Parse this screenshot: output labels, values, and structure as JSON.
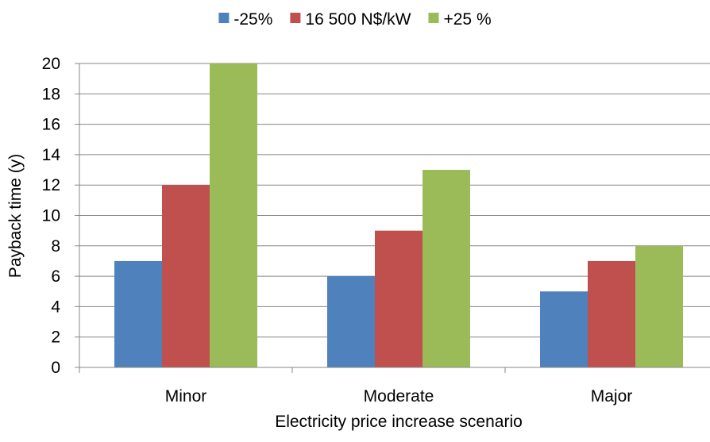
{
  "chart_data": {
    "type": "bar",
    "title": "",
    "xlabel": "Electricity price increase scenario",
    "ylabel": "Payback time (y)",
    "categories": [
      "Minor",
      "Moderate",
      "Major"
    ],
    "series": [
      {
        "name": "-25%",
        "color": "#4f81bd",
        "values": [
          7,
          6,
          5
        ]
      },
      {
        "name": "16 500 N$/kW",
        "color": "#c0504d",
        "values": [
          12,
          9,
          7
        ]
      },
      {
        "name": "+25 %",
        "color": "#9bbb59",
        "values": [
          20,
          13,
          8
        ]
      }
    ],
    "ylim": [
      0,
      20
    ],
    "yticks": [
      "0",
      "2",
      "4",
      "6",
      "8",
      "10",
      "12",
      "14",
      "16",
      "18",
      "20"
    ],
    "grid": true,
    "legend_position": "top"
  }
}
